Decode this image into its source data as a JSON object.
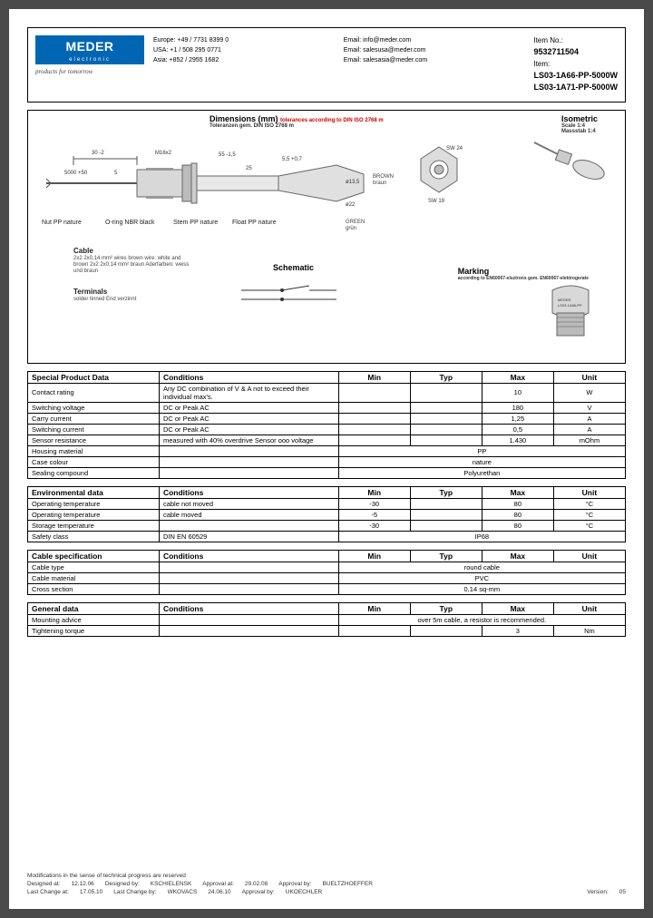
{
  "header": {
    "logo_main": "MEDER",
    "logo_sub": "electronic",
    "tagline": "products for tomorrow",
    "contacts": {
      "europe_label": "Europe:",
      "europe_phone": "+49 / 7731 8399 0",
      "europe_email": "Email: info@meder.com",
      "usa_label": "USA:",
      "usa_phone": "+1 / 508 295 0771",
      "usa_email": "Email: salesusa@meder.com",
      "asia_label": "Asia:",
      "asia_phone": "+852 / 2955 1682",
      "asia_email": "Email: salesasia@meder.com"
    },
    "item_no_label": "Item No.:",
    "item_no": "9532711504",
    "item_label": "Item:",
    "item_name1": "LS03-1A66-PP-5000W",
    "item_name2": "LS03-1A71-PP-5000W"
  },
  "drawing": {
    "dimensions_title": "Dimensions (mm)",
    "dimensions_red": "tolerances according to DIN ISO 2768 m",
    "dimensions_note": "Toleranzen gem. DIN ISO 2768 m",
    "isometric_title": "Isometric",
    "isometric_sub1": "Scale 1:4",
    "isometric_sub2": "Massstab 1:4",
    "schematic_title": "Schematic",
    "marking_title": "Marking",
    "marking_sub": "according to EN60067-elsztrons gem. EN60067-elektrogerate",
    "dim_5000": "5000 +50",
    "dim_30": "30 -2",
    "dim_5": "5",
    "dim_m16": "M16x2",
    "dim_55": "55 -1,5",
    "dim_25": "25",
    "dim_55_07": "5,5 +0,7",
    "dim_135": "ø13,5",
    "dim_22": "ø22",
    "sw24": "SW 24",
    "sw19": "SW 19",
    "label_brown": "BROWN",
    "label_brown_sub": "braun",
    "label_green": "GREEN",
    "label_green_sub": "grün",
    "label_nut": "Nut PP nature",
    "label_oring": "O-ring NBR black",
    "label_stem": "Stem PP nature",
    "label_float": "Float PP nature",
    "cable_title": "Cable",
    "cable_note": "2x2 2x0,14 mm² wires brown wire: white and brown\n2x2 2x0,14 mm² braun Aderfarben: weiss und braun",
    "terminals_title": "Terminals",
    "terminals_note": "solder tinned\nEnd verzinnt"
  },
  "tables": {
    "special": {
      "header": [
        "Special Product Data",
        "Conditions",
        "Min",
        "Typ",
        "Max",
        "Unit"
      ],
      "rows": [
        [
          "Contact rating",
          "Any DC combination of V & A not to exceed their individual max's.",
          "",
          "",
          "10",
          "W"
        ],
        [
          "Switching voltage",
          "DC or Peak AC",
          "",
          "",
          "180",
          "V"
        ],
        [
          "Carry current",
          "DC or Peak AC",
          "",
          "",
          "1,25",
          "A"
        ],
        [
          "Switching current",
          "DC or Peak AC",
          "",
          "",
          "0,5",
          "A"
        ],
        [
          "Sensor resistance",
          "measured with 40% overdrive Sensor ooo voltage",
          "",
          "",
          "1.430",
          "mOhm"
        ],
        [
          "Housing material",
          "",
          {
            "span": 4,
            "text": "PP"
          },
          null,
          null,
          null
        ],
        [
          "Case colour",
          "",
          {
            "span": 4,
            "text": "nature"
          },
          null,
          null,
          null
        ],
        [
          "Sealing compound",
          "",
          {
            "span": 4,
            "text": "Polyurethan"
          },
          null,
          null,
          null
        ]
      ]
    },
    "environmental": {
      "header": [
        "Environmental data",
        "Conditions",
        "Min",
        "Typ",
        "Max",
        "Unit"
      ],
      "rows": [
        [
          "Operating temperature",
          "cable not moved",
          "-30",
          "",
          "80",
          "°C"
        ],
        [
          "Operating temperature",
          "cable moved",
          "-5",
          "",
          "80",
          "°C"
        ],
        [
          "Storage temperature",
          "",
          "-30",
          "",
          "80",
          "°C"
        ],
        [
          "Safety class",
          "DIN EN 60529",
          {
            "span": 4,
            "text": "IP68"
          },
          null,
          null,
          null
        ]
      ]
    },
    "cable": {
      "header": [
        "Cable specification",
        "Conditions",
        "Min",
        "Typ",
        "Max",
        "Unit"
      ],
      "rows": [
        [
          "Cable type",
          "",
          {
            "span": 4,
            "text": "round cable"
          },
          null,
          null,
          null
        ],
        [
          "Cable material",
          "",
          {
            "span": 4,
            "text": "PVC"
          },
          null,
          null,
          null
        ],
        [
          "Cross section",
          "",
          {
            "span": 4,
            "text": "0,14 sq-mm"
          },
          null,
          null,
          null
        ]
      ]
    },
    "general": {
      "header": [
        "General data",
        "Conditions",
        "Min",
        "Typ",
        "Max",
        "Unit"
      ],
      "rows": [
        [
          "Mounting advice",
          "",
          {
            "span": 4,
            "text": "over 5m cable, a resistor is recommended."
          },
          null,
          null,
          null
        ],
        [
          "Tightening torque",
          "",
          "",
          "",
          "3",
          "Nm"
        ]
      ]
    }
  },
  "footer": {
    "mod_note": "Modifications in the sense of technical progress are reserved",
    "designed_at_label": "Designed at:",
    "designed_at": "12.12.06",
    "designed_by_label": "Designed by:",
    "designed_by": "KSCHIELENSK",
    "approval_at_label": "Approval at:",
    "approval_at": "29.02.08",
    "approval_by_label": "Approval by:",
    "approval_by": "BUELTZHOEFFER",
    "last_change_at_label": "Last Change at:",
    "last_change_at": "17.05.10",
    "last_change_by_label": "Last Change by:",
    "last_change_by": "WKOVACS",
    "approval_at2": "24.06.10",
    "approval_by2": "UKOECHLER",
    "version_label": "Version:",
    "version": "05"
  }
}
